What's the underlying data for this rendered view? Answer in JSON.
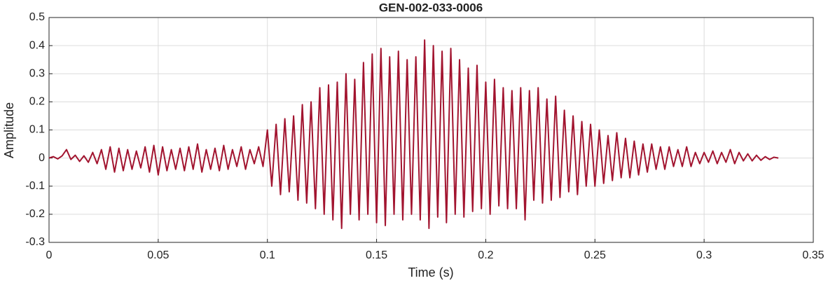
{
  "chart_data": {
    "type": "line",
    "title": "GEN-002-033-0006",
    "x_label": "Time (s)",
    "y_label": "Amplitude",
    "xlim": [
      0,
      0.35
    ],
    "xticks": [
      0,
      0.05,
      0.1,
      0.15,
      0.2,
      0.25,
      0.3,
      0.35
    ],
    "ylim": [
      -0.3,
      0.5
    ],
    "yticks": [
      -0.3,
      -0.2,
      -0.1,
      0,
      0.1,
      0.2,
      0.3,
      0.4,
      0.5
    ],
    "grid": true,
    "series": [
      {
        "name": "Amplitude",
        "color": "#a2142f",
        "x": [
          0,
          0.002,
          0.004,
          0.006,
          0.008,
          0.01,
          0.012,
          0.014,
          0.016,
          0.018,
          0.02,
          0.022,
          0.024,
          0.026,
          0.028,
          0.03,
          0.032,
          0.034,
          0.036,
          0.038,
          0.04,
          0.042,
          0.044,
          0.046,
          0.048,
          0.05,
          0.052,
          0.054,
          0.056,
          0.058,
          0.06,
          0.062,
          0.064,
          0.066,
          0.068,
          0.07,
          0.072,
          0.074,
          0.076,
          0.078,
          0.08,
          0.082,
          0.084,
          0.086,
          0.088,
          0.09,
          0.092,
          0.094,
          0.096,
          0.098,
          0.1,
          0.102,
          0.104,
          0.106,
          0.108,
          0.11,
          0.112,
          0.114,
          0.116,
          0.118,
          0.12,
          0.122,
          0.124,
          0.126,
          0.128,
          0.13,
          0.132,
          0.134,
          0.136,
          0.138,
          0.14,
          0.142,
          0.144,
          0.146,
          0.148,
          0.15,
          0.152,
          0.154,
          0.156,
          0.158,
          0.16,
          0.162,
          0.164,
          0.166,
          0.168,
          0.17,
          0.172,
          0.174,
          0.176,
          0.178,
          0.18,
          0.182,
          0.184,
          0.186,
          0.188,
          0.19,
          0.192,
          0.194,
          0.196,
          0.198,
          0.2,
          0.202,
          0.204,
          0.206,
          0.208,
          0.21,
          0.212,
          0.214,
          0.216,
          0.218,
          0.22,
          0.222,
          0.224,
          0.226,
          0.228,
          0.23,
          0.232,
          0.234,
          0.236,
          0.238,
          0.24,
          0.242,
          0.244,
          0.246,
          0.248,
          0.25,
          0.252,
          0.254,
          0.256,
          0.258,
          0.26,
          0.262,
          0.264,
          0.266,
          0.268,
          0.27,
          0.272,
          0.274,
          0.276,
          0.278,
          0.28,
          0.282,
          0.284,
          0.286,
          0.288,
          0.29,
          0.292,
          0.294,
          0.296,
          0.298,
          0.3,
          0.302,
          0.304,
          0.306,
          0.308,
          0.31,
          0.312,
          0.314,
          0.316,
          0.318,
          0.32,
          0.322,
          0.324,
          0.326,
          0.328,
          0.33,
          0.332,
          0.334
        ],
        "values": [
          0,
          0.005,
          -0.003,
          0.008,
          0.03,
          -0.005,
          0.01,
          -0.012,
          0.008,
          -0.015,
          0.02,
          -0.02,
          0.03,
          -0.04,
          0.04,
          -0.05,
          0.035,
          -0.045,
          0.03,
          -0.04,
          0.025,
          -0.035,
          0.04,
          -0.05,
          0.045,
          -0.06,
          0.04,
          -0.045,
          0.03,
          -0.04,
          0.035,
          -0.045,
          0.04,
          -0.04,
          0.05,
          -0.05,
          0.03,
          -0.04,
          0.035,
          -0.045,
          0.045,
          -0.04,
          0.03,
          -0.03,
          0.04,
          -0.04,
          0.03,
          -0.02,
          0.04,
          -0.03,
          0.1,
          -0.1,
          0.12,
          -0.13,
          0.14,
          -0.12,
          0.15,
          -0.15,
          0.19,
          -0.16,
          0.2,
          -0.18,
          0.25,
          -0.2,
          0.26,
          -0.22,
          0.27,
          -0.25,
          0.3,
          -0.2,
          0.28,
          -0.22,
          0.34,
          -0.2,
          0.37,
          -0.23,
          0.39,
          -0.24,
          0.36,
          -0.2,
          0.38,
          -0.22,
          0.35,
          -0.2,
          0.36,
          -0.22,
          0.42,
          -0.25,
          0.4,
          -0.21,
          0.38,
          -0.23,
          0.39,
          -0.2,
          0.35,
          -0.21,
          0.32,
          -0.19,
          0.33,
          -0.18,
          0.27,
          -0.2,
          0.28,
          -0.17,
          0.25,
          -0.18,
          0.24,
          -0.18,
          0.25,
          -0.22,
          0.24,
          -0.15,
          0.25,
          -0.16,
          0.21,
          -0.15,
          0.22,
          -0.14,
          0.17,
          -0.12,
          0.15,
          -0.13,
          0.13,
          -0.1,
          0.12,
          -0.1,
          0.1,
          -0.09,
          0.08,
          -0.08,
          0.09,
          -0.07,
          0.07,
          -0.07,
          0.06,
          -0.06,
          0.05,
          -0.05,
          0.05,
          -0.04,
          0.04,
          -0.04,
          0.04,
          -0.03,
          0.03,
          -0.03,
          0.04,
          -0.03,
          0.02,
          -0.02,
          0.02,
          -0.015,
          0.025,
          -0.02,
          0.02,
          -0.015,
          0.03,
          -0.02,
          0.02,
          -0.01,
          0.015,
          -0.01,
          0.01,
          -0.008,
          0.005,
          -0.005,
          0.003,
          0
        ]
      }
    ]
  }
}
